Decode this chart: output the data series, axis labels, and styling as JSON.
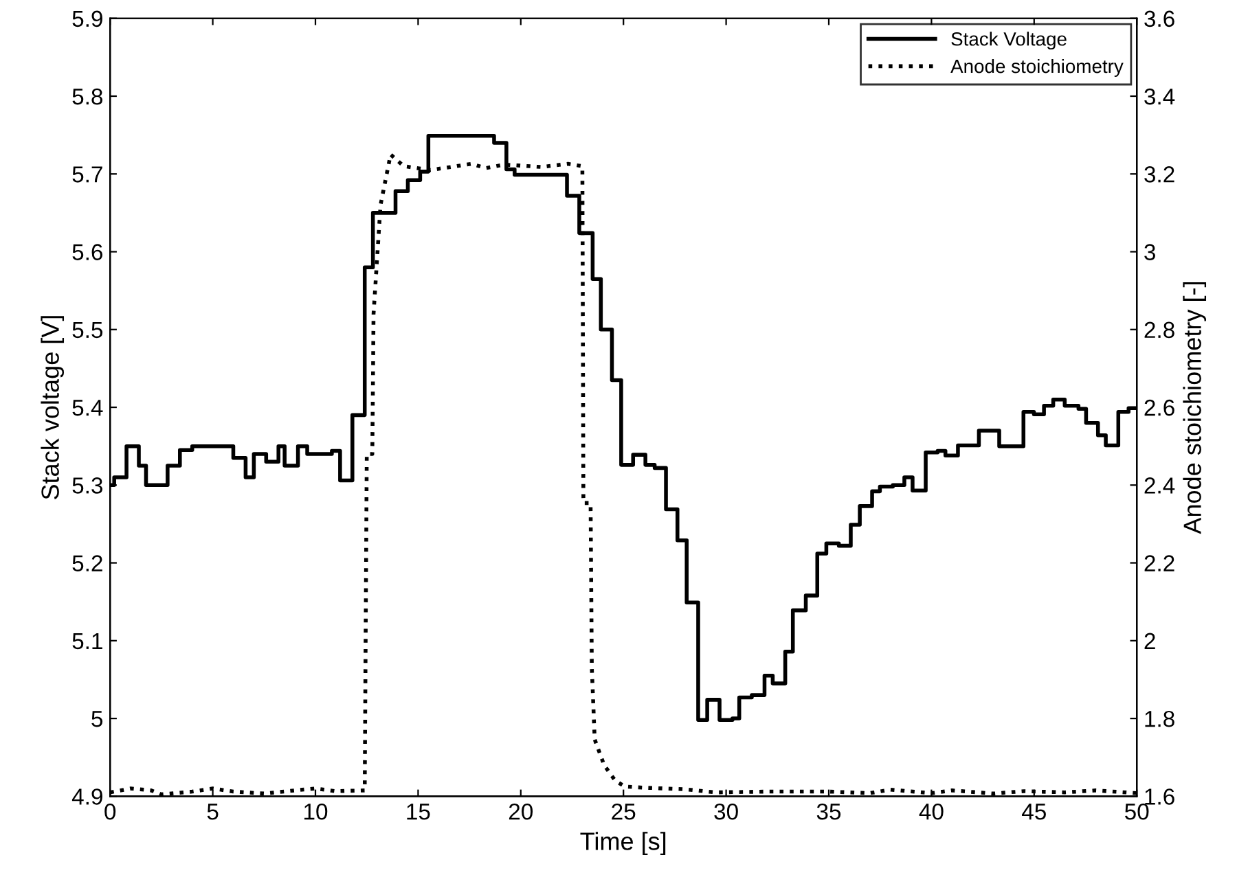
{
  "chart_data": {
    "type": "step",
    "xlabel": "Time [s]",
    "ylabel": "Stack voltage [V]",
    "y2label": "Anode stoichiometry [-]",
    "xlim": [
      0,
      50
    ],
    "xticks": [
      0,
      5,
      10,
      15,
      20,
      25,
      30,
      35,
      40,
      45,
      50
    ],
    "ylim": [
      4.9,
      5.9
    ],
    "yticks": [
      4.9,
      5,
      5.1,
      5.2,
      5.3,
      5.4,
      5.5,
      5.6,
      5.7,
      5.8,
      5.9
    ],
    "y2lim": [
      1.6,
      3.6
    ],
    "y2ticks": [
      1.6,
      1.8,
      2,
      2.2,
      2.4,
      2.6,
      2.8,
      3,
      3.2,
      3.4,
      3.6
    ],
    "grid": false,
    "legend": "top right",
    "series": [
      {
        "name": "Stack Voltage",
        "color": "#000000",
        "line_style": "solid",
        "axis": "y",
        "x": [
          0,
          0.2,
          0.8,
          1.4,
          1.75,
          2.8,
          3.4,
          4.0,
          6.0,
          6.6,
          7.0,
          7.6,
          8.2,
          8.5,
          9.15,
          9.6,
          10.8,
          11.2,
          11.8,
          12.4,
          12.8,
          13.9,
          14.5,
          15.1,
          15.5,
          18.7,
          19.3,
          19.7,
          22.25,
          22.85,
          23.5,
          23.9,
          24.44,
          24.89,
          25.47,
          26.07,
          26.52,
          27.07,
          27.63,
          28.08,
          28.64,
          29.08,
          29.68,
          30.31,
          30.64,
          31.25,
          31.87,
          32.27,
          32.88,
          33.25,
          33.88,
          34.44,
          34.88,
          35.49,
          36.07,
          36.51,
          37.11,
          37.49,
          38.12,
          38.68,
          39.08,
          39.72,
          40.3,
          40.68,
          41.29,
          42.31,
          43.3,
          44.48,
          44.99,
          45.48,
          45.93,
          46.49,
          47.16,
          47.53,
          48.11,
          48.49,
          49.1,
          49.6,
          50
        ],
        "values": [
          5.3,
          5.31,
          5.35,
          5.325,
          5.3,
          5.325,
          5.345,
          5.35,
          5.335,
          5.31,
          5.34,
          5.33,
          5.35,
          5.325,
          5.35,
          5.34,
          5.344,
          5.306,
          5.39,
          5.58,
          5.65,
          5.678,
          5.692,
          5.703,
          5.749,
          5.74,
          5.706,
          5.699,
          5.672,
          5.624,
          5.565,
          5.5,
          5.435,
          5.326,
          5.339,
          5.326,
          5.322,
          5.269,
          5.229,
          5.149,
          4.998,
          5.024,
          4.998,
          5.0,
          5.027,
          5.03,
          5.055,
          5.045,
          5.086,
          5.139,
          5.158,
          5.212,
          5.225,
          5.222,
          5.249,
          5.273,
          5.292,
          5.298,
          5.3,
          5.31,
          5.293,
          5.342,
          5.344,
          5.338,
          5.351,
          5.37,
          5.35,
          5.394,
          5.391,
          5.402,
          5.41,
          5.402,
          5.398,
          5.38,
          5.364,
          5.351,
          5.394,
          5.399,
          5.399
        ]
      },
      {
        "name": "Anode stoichiometry",
        "type": "line",
        "color": "#000000",
        "line_style": "dotted",
        "axis": "y2",
        "x": [
          0,
          1,
          2,
          2.5,
          4,
          5,
          6,
          7.5,
          9,
          10,
          11,
          12.4,
          12.5,
          12.77,
          12.83,
          13.17,
          13.66,
          14.3,
          15.6,
          17.6,
          18.3,
          19.2,
          21,
          22.3,
          23.0,
          23.05,
          23.4,
          23.46,
          23.6,
          24.06,
          24.6,
          25.07,
          26,
          28,
          29.5,
          32,
          35,
          37,
          38,
          40,
          41,
          43,
          44.5,
          46.5,
          48,
          50
        ],
        "values": [
          1.61,
          1.62,
          1.615,
          1.605,
          1.612,
          1.62,
          1.612,
          1.607,
          1.615,
          1.62,
          1.613,
          1.615,
          2.48,
          2.48,
          2.84,
          3.12,
          3.25,
          3.22,
          3.21,
          3.226,
          3.215,
          3.224,
          3.218,
          3.226,
          3.22,
          2.354,
          2.354,
          1.93,
          1.746,
          1.68,
          1.64,
          1.625,
          1.622,
          1.618,
          1.61,
          1.612,
          1.612,
          1.608,
          1.617,
          1.608,
          1.615,
          1.607,
          1.613,
          1.61,
          1.615,
          1.608
        ]
      }
    ]
  }
}
